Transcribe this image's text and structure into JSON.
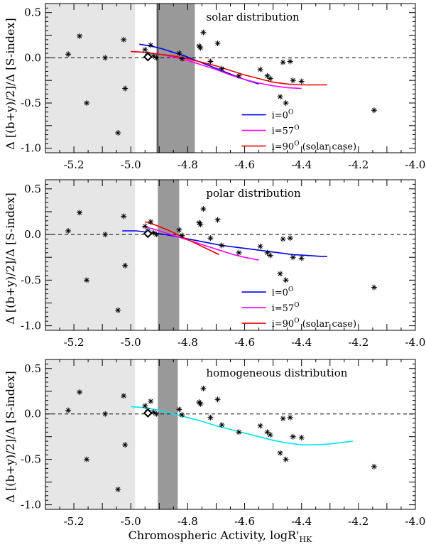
{
  "figure": {
    "ylabel": "Δ [(b+y)/2]/Δ [S-index]",
    "xlabel_main": "Chromospheric Activity,  logR'",
    "xlabel_sub": "HK"
  },
  "chart_data": [
    {
      "type": "line",
      "title": "solar distribution",
      "xlim": [
        -5.3,
        -4.0
      ],
      "ylim": [
        -1.05,
        0.6
      ],
      "xticks": [
        "-5.2",
        "-5.0",
        "-4.8",
        "-4.6",
        "-4.4",
        "-4.2",
        "-4.0"
      ],
      "yticks": [
        "0.5",
        "0.0",
        "-0.5",
        "-1.0"
      ],
      "light_band": [
        -5.3,
        -4.985
      ],
      "dark_band": [
        -4.91,
        -4.775
      ],
      "vertical_line": -4.905,
      "reference_line": 0.0,
      "solar_point": [
        -4.94,
        0.01
      ],
      "stars": [
        [
          -5.22,
          0.04
        ],
        [
          -5.18,
          0.24
        ],
        [
          -5.155,
          -0.5
        ],
        [
          -5.09,
          0.0
        ],
        [
          -5.045,
          -0.83
        ],
        [
          -5.025,
          0.2
        ],
        [
          -5.02,
          -0.34
        ],
        [
          -4.95,
          0.09
        ],
        [
          -4.94,
          0.04
        ],
        [
          -4.93,
          0.14
        ],
        [
          -4.92,
          0.02
        ],
        [
          -4.91,
          0.0
        ],
        [
          -4.83,
          0.05
        ],
        [
          -4.82,
          -0.01
        ],
        [
          -4.76,
          0.13
        ],
        [
          -4.755,
          0.11
        ],
        [
          -4.745,
          0.28
        ],
        [
          -4.72,
          -0.04
        ],
        [
          -4.695,
          0.16
        ],
        [
          -4.68,
          -0.12
        ],
        [
          -4.62,
          -0.2
        ],
        [
          -4.545,
          -0.13
        ],
        [
          -4.52,
          -0.2
        ],
        [
          -4.51,
          -0.23
        ],
        [
          -4.475,
          -0.43
        ],
        [
          -4.465,
          -0.05
        ],
        [
          -4.455,
          -0.5
        ],
        [
          -4.44,
          -0.04
        ],
        [
          -4.43,
          -0.25
        ],
        [
          -4.4,
          -0.26
        ],
        [
          -4.145,
          -0.58
        ]
      ],
      "series": [
        {
          "name": "i=0",
          "color": "#0000ee",
          "x": [
            -4.97,
            -4.93,
            -4.89,
            -4.85,
            -4.81,
            -4.77,
            -4.73,
            -4.69,
            -4.65,
            -4.61,
            -4.57,
            -4.55
          ],
          "y": [
            0.15,
            0.13,
            0.1,
            0.06,
            0.02,
            -0.03,
            -0.08,
            -0.13,
            -0.18,
            -0.23,
            -0.27,
            -0.29
          ]
        },
        {
          "name": "i=57",
          "color": "#ff00ff",
          "x": [
            -5.0,
            -4.95,
            -4.9,
            -4.85,
            -4.8,
            -4.75,
            -4.7,
            -4.65,
            -4.6,
            -4.55,
            -4.5,
            -4.45,
            -4.4
          ],
          "y": [
            0.07,
            0.06,
            0.04,
            0.01,
            -0.03,
            -0.08,
            -0.13,
            -0.19,
            -0.24,
            -0.28,
            -0.31,
            -0.33,
            -0.34
          ]
        },
        {
          "name": "i=90 (solar case)",
          "color": "#ee0000",
          "x": [
            -5.0,
            -4.95,
            -4.9,
            -4.85,
            -4.8,
            -4.75,
            -4.7,
            -4.65,
            -4.6,
            -4.55,
            -4.5,
            -4.45,
            -4.4,
            -4.35,
            -4.31
          ],
          "y": [
            0.07,
            0.06,
            0.04,
            0.02,
            -0.01,
            -0.05,
            -0.09,
            -0.14,
            -0.19,
            -0.23,
            -0.27,
            -0.29,
            -0.3,
            -0.3,
            -0.3
          ]
        }
      ],
      "legend": {
        "placement": "bottom-right",
        "labels": [
          "i=0",
          "i=57",
          "i=90"
        ],
        "sup": "O",
        "suffix": [
          "",
          "",
          " (solar case)"
        ]
      }
    },
    {
      "type": "line",
      "title": "polar distribution",
      "xlim": [
        -5.3,
        -4.0
      ],
      "ylim": [
        -1.05,
        0.6
      ],
      "xticks": [
        "-5.2",
        "-5.0",
        "-4.8",
        "-4.6",
        "-4.4",
        "-4.2",
        "-4.0"
      ],
      "yticks": [
        "0.5",
        "0.0",
        "-0.5",
        "-1.0"
      ],
      "light_band": [
        -5.3,
        -4.985
      ],
      "dark_band": [
        -4.905,
        -4.83
      ],
      "vertical_line": null,
      "reference_line": 0.0,
      "solar_point": [
        -4.94,
        0.01
      ],
      "stars": [
        [
          -5.22,
          0.04
        ],
        [
          -5.18,
          0.24
        ],
        [
          -5.155,
          -0.5
        ],
        [
          -5.09,
          0.0
        ],
        [
          -5.045,
          -0.83
        ],
        [
          -5.025,
          0.2
        ],
        [
          -5.02,
          -0.34
        ],
        [
          -4.95,
          0.09
        ],
        [
          -4.94,
          0.04
        ],
        [
          -4.93,
          0.14
        ],
        [
          -4.92,
          0.02
        ],
        [
          -4.91,
          0.0
        ],
        [
          -4.83,
          0.05
        ],
        [
          -4.82,
          -0.01
        ],
        [
          -4.76,
          0.13
        ],
        [
          -4.755,
          0.11
        ],
        [
          -4.745,
          0.28
        ],
        [
          -4.72,
          -0.04
        ],
        [
          -4.695,
          0.16
        ],
        [
          -4.68,
          -0.12
        ],
        [
          -4.62,
          -0.2
        ],
        [
          -4.545,
          -0.13
        ],
        [
          -4.52,
          -0.2
        ],
        [
          -4.51,
          -0.23
        ],
        [
          -4.475,
          -0.43
        ],
        [
          -4.465,
          -0.05
        ],
        [
          -4.455,
          -0.5
        ],
        [
          -4.44,
          -0.04
        ],
        [
          -4.43,
          -0.25
        ],
        [
          -4.4,
          -0.26
        ],
        [
          -4.145,
          -0.58
        ]
      ],
      "series": [
        {
          "name": "i=0",
          "color": "#0000ee",
          "x": [
            -5.03,
            -4.98,
            -4.93,
            -4.88,
            -4.83,
            -4.78,
            -4.73,
            -4.68,
            -4.63,
            -4.58,
            -4.53,
            -4.48,
            -4.43,
            -4.38,
            -4.33,
            -4.31
          ],
          "y": [
            0.04,
            0.04,
            0.02,
            0.0,
            -0.03,
            -0.06,
            -0.09,
            -0.12,
            -0.14,
            -0.16,
            -0.18,
            -0.2,
            -0.22,
            -0.23,
            -0.24,
            -0.24
          ]
        },
        {
          "name": "i=57",
          "color": "#ff00ff",
          "x": [
            -4.96,
            -4.92,
            -4.88,
            -4.84,
            -4.8,
            -4.76,
            -4.72,
            -4.68,
            -4.64,
            -4.6,
            -4.55
          ],
          "y": [
            0.09,
            0.06,
            0.02,
            -0.02,
            -0.06,
            -0.1,
            -0.14,
            -0.18,
            -0.22,
            -0.25,
            -0.28
          ]
        },
        {
          "name": "i=90 (solar case)",
          "color": "#ee0000",
          "x": [
            -4.95,
            -4.91,
            -4.87,
            -4.83,
            -4.79,
            -4.75,
            -4.71,
            -4.69
          ],
          "y": [
            0.14,
            0.1,
            0.05,
            -0.01,
            -0.07,
            -0.13,
            -0.19,
            -0.22
          ]
        }
      ],
      "legend": {
        "placement": "bottom-right",
        "labels": [
          "i=0",
          "i=57",
          "i=90"
        ],
        "sup": "O",
        "suffix": [
          "",
          "",
          " (solar case)"
        ]
      }
    },
    {
      "type": "line",
      "title": "homogeneous distribution",
      "xlim": [
        -5.3,
        -4.0
      ],
      "ylim": [
        -1.05,
        0.6
      ],
      "xticks": [
        "-5.2",
        "-5.0",
        "-4.8",
        "-4.6",
        "-4.4",
        "-4.2",
        "-4.0"
      ],
      "yticks": [
        "0.5",
        "0.0",
        "-0.5",
        "-1.0"
      ],
      "light_band": [
        -5.3,
        -4.985
      ],
      "dark_band": [
        -4.905,
        -4.835
      ],
      "vertical_line": null,
      "reference_line": 0.0,
      "solar_point": [
        -4.94,
        0.01
      ],
      "stars": [
        [
          -5.22,
          0.04
        ],
        [
          -5.18,
          0.24
        ],
        [
          -5.155,
          -0.5
        ],
        [
          -5.09,
          0.0
        ],
        [
          -5.045,
          -0.83
        ],
        [
          -5.025,
          0.2
        ],
        [
          -5.02,
          -0.34
        ],
        [
          -4.95,
          0.09
        ],
        [
          -4.94,
          0.04
        ],
        [
          -4.93,
          0.14
        ],
        [
          -4.92,
          0.02
        ],
        [
          -4.91,
          0.0
        ],
        [
          -4.83,
          0.05
        ],
        [
          -4.82,
          -0.01
        ],
        [
          -4.76,
          0.13
        ],
        [
          -4.755,
          0.11
        ],
        [
          -4.745,
          0.28
        ],
        [
          -4.72,
          -0.04
        ],
        [
          -4.695,
          0.16
        ],
        [
          -4.68,
          -0.12
        ],
        [
          -4.62,
          -0.2
        ],
        [
          -4.545,
          -0.13
        ],
        [
          -4.52,
          -0.2
        ],
        [
          -4.51,
          -0.23
        ],
        [
          -4.475,
          -0.43
        ],
        [
          -4.465,
          -0.05
        ],
        [
          -4.455,
          -0.5
        ],
        [
          -4.44,
          -0.04
        ],
        [
          -4.43,
          -0.25
        ],
        [
          -4.4,
          -0.26
        ],
        [
          -4.145,
          -0.58
        ]
      ],
      "series": [
        {
          "name": "homogeneous",
          "color": "#00e5ee",
          "x": [
            -5.0,
            -4.95,
            -4.9,
            -4.85,
            -4.8,
            -4.75,
            -4.7,
            -4.65,
            -4.6,
            -4.55,
            -4.5,
            -4.45,
            -4.4,
            -4.35,
            -4.3,
            -4.25,
            -4.22
          ],
          "y": [
            0.08,
            0.07,
            0.04,
            0.0,
            -0.04,
            -0.08,
            -0.13,
            -0.17,
            -0.21,
            -0.25,
            -0.29,
            -0.32,
            -0.34,
            -0.34,
            -0.33,
            -0.31,
            -0.3
          ]
        }
      ],
      "legend": null
    }
  ]
}
